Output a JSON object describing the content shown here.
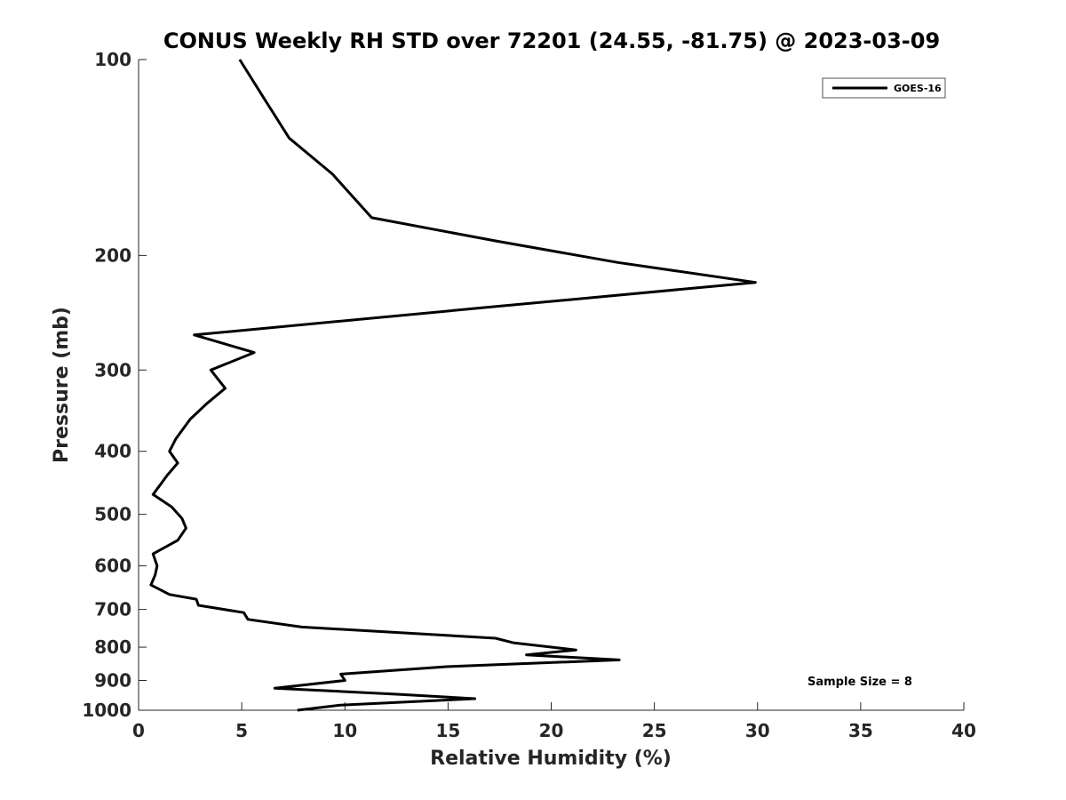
{
  "chart_data": {
    "type": "line",
    "title": "CONUS Weekly RH STD over 72201 (24.55, -81.75) @ 2023-03-09",
    "xlabel": "Relative Humidity (%)",
    "ylabel": "Pressure (mb)",
    "xlim": [
      0,
      40
    ],
    "ylim": [
      100,
      1000
    ],
    "y_scale": "log",
    "y_direction": "reverse",
    "grid": false,
    "legend_position": "top-right",
    "x_ticks": [
      0,
      5,
      10,
      15,
      20,
      25,
      30,
      35,
      40
    ],
    "x_tick_labels": [
      "0",
      "5",
      "10",
      "15",
      "20",
      "25",
      "30",
      "35",
      "40"
    ],
    "y_ticks": [
      100,
      200,
      300,
      400,
      500,
      600,
      700,
      800,
      900,
      1000
    ],
    "y_tick_labels": [
      "100",
      "200",
      "300",
      "400",
      "500",
      "600",
      "700",
      "800",
      "900",
      "1000"
    ],
    "series": [
      {
        "name": "GOES-16",
        "color": "#000000",
        "x": [
          4.9,
          6.1,
          7.3,
          9.4,
          11.3,
          17.3,
          23.2,
          29.9,
          17.1,
          2.7,
          5.6,
          3.5,
          4.2,
          3.3,
          2.5,
          1.8,
          1.5,
          1.9,
          1.4,
          0.7,
          1.6,
          2.1,
          2.3,
          1.9,
          0.7,
          0.9,
          0.8,
          0.6,
          1.5,
          2.8,
          2.9,
          5.1,
          5.3,
          7.9,
          17.3,
          18.2,
          21.2,
          18.8,
          23.3,
          15.0,
          9.8,
          10.0,
          6.6,
          12.5,
          16.3,
          9.8,
          7.7
        ],
        "y": [
          100,
          115,
          132,
          150,
          175,
          190,
          205,
          220,
          240,
          265,
          282,
          300,
          320,
          338,
          357,
          383,
          400,
          417,
          435,
          466,
          487,
          507,
          525,
          548,
          575,
          600,
          620,
          642,
          664,
          675,
          690,
          708,
          725,
          745,
          775,
          788,
          808,
          822,
          837,
          857,
          880,
          900,
          925,
          945,
          960,
          982,
          1000
        ]
      }
    ],
    "annotations": [
      "Sample Size = 8"
    ]
  }
}
